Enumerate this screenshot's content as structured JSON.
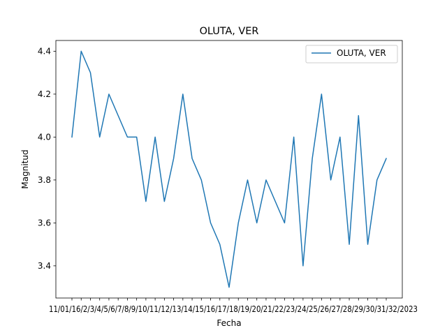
{
  "chart_data": {
    "type": "line",
    "title": "OLUTA, VER",
    "xlabel": "Fecha",
    "ylabel": "Magnitud",
    "ylim": [
      3.25,
      4.45
    ],
    "yticks": [
      "3.4",
      "3.6",
      "3.8",
      "4.0",
      "4.2",
      "4.4"
    ],
    "ytick_values": [
      3.4,
      3.6,
      3.8,
      4.0,
      4.2,
      4.4
    ],
    "x_tick_labels_rendered": "11/01/16/2/3/4/5/6/7/8/9/10/11/12/13/14/15/16/17/18/19/20/21/22/23/24/25/26/27/28/29/30/31/32/2023",
    "categories_count": 35,
    "series": [
      {
        "name": "OLUTA, VER",
        "color": "#1f77b4",
        "values": [
          4.0,
          4.4,
          4.3,
          4.0,
          4.2,
          4.1,
          4.0,
          4.0,
          3.7,
          4.0,
          3.7,
          3.9,
          4.2,
          3.9,
          3.8,
          3.6,
          3.5,
          3.3,
          3.6,
          3.8,
          3.6,
          3.8,
          3.7,
          3.6,
          4.0,
          3.4,
          3.9,
          4.2,
          3.8,
          4.0,
          3.5,
          4.1,
          3.5,
          3.8,
          3.9
        ]
      }
    ],
    "legend": {
      "position": "top-right",
      "entries": [
        "OLUTA, VER"
      ]
    },
    "grid": false
  }
}
